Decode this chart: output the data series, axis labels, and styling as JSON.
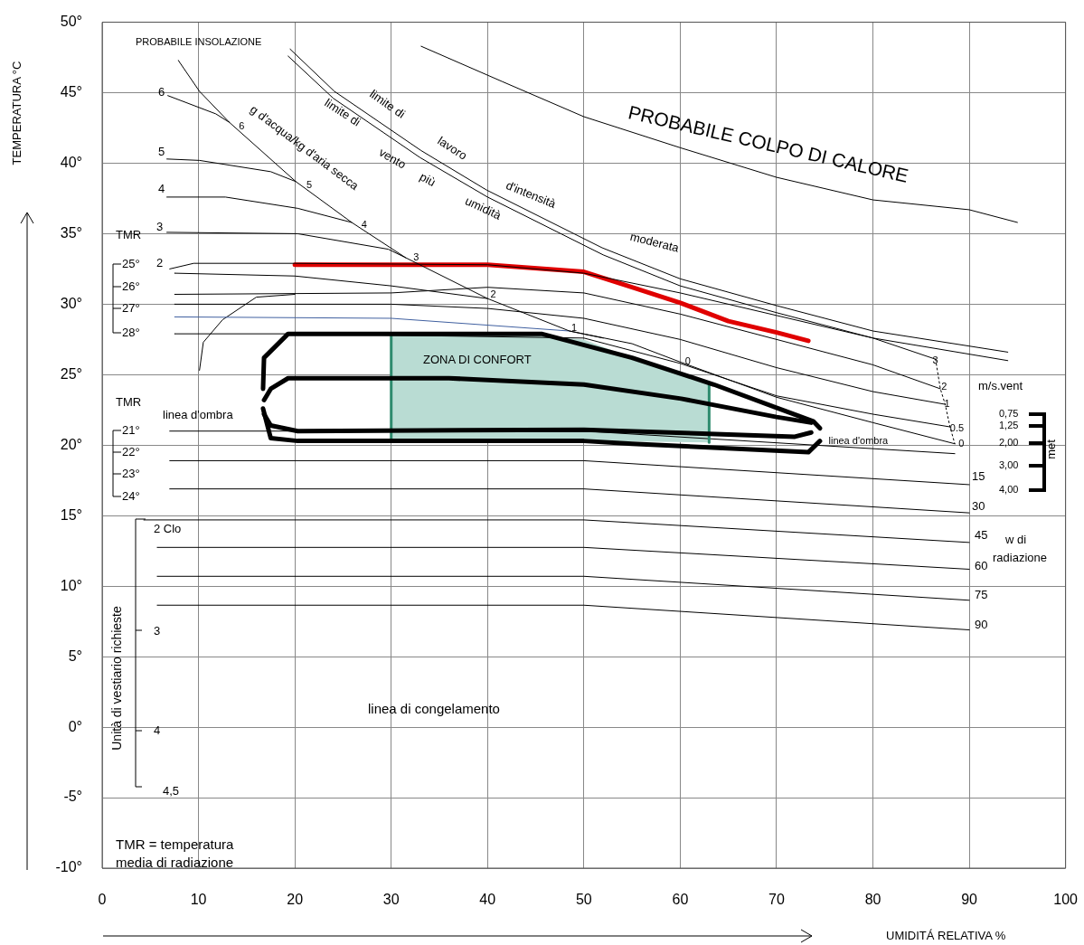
{
  "chart_data": {
    "type": "line",
    "xlabel": "UMIDITÁ RELATIVA %",
    "ylabel": "TEMPERATURA °C",
    "xlim": [
      0,
      100
    ],
    "xticks": [
      0,
      10,
      20,
      30,
      40,
      50,
      60,
      70,
      80,
      90,
      100
    ],
    "ylim": [
      -10,
      50
    ],
    "yticks": [
      {
        "value": -10,
        "label": "-10°"
      },
      {
        "value": -5,
        "label": "-5°"
      },
      {
        "value": 0,
        "label": "0°"
      },
      {
        "value": 5,
        "label": "5°"
      },
      {
        "value": 10,
        "label": "10°"
      },
      {
        "value": 15,
        "label": "15°"
      },
      {
        "value": 20,
        "label": "20°"
      },
      {
        "value": 25,
        "label": "25°"
      },
      {
        "value": 30,
        "label": "30°"
      },
      {
        "value": 35,
        "label": "35°"
      },
      {
        "value": 40,
        "label": "40°"
      },
      {
        "value": 45,
        "label": "45°"
      },
      {
        "value": 50,
        "label": "50°"
      }
    ],
    "grid": true,
    "legend": false,
    "marker": "none",
    "series": [
      {
        "color": "#000000",
        "x": [
          33.1,
          41.5,
          50,
          60,
          70,
          80,
          90,
          95
        ],
        "values": [
          48.3,
          45.8,
          43.3,
          41.1,
          39.0,
          37.4,
          36.7,
          35.8
        ]
      },
      {
        "color": "#000000",
        "x": [
          19.5,
          24.1,
          33.1,
          39.9,
          51.9,
          60,
          70,
          80,
          94
        ],
        "values": [
          48.1,
          45.1,
          40.9,
          38.1,
          34.0,
          31.8,
          29.9,
          28.1,
          26.6
        ]
      },
      {
        "color": "#000000",
        "x": [
          19.3,
          24,
          33,
          40,
          52,
          60,
          70,
          80,
          94
        ],
        "values": [
          47.6,
          44.6,
          40.4,
          37.6,
          33.5,
          31.3,
          29.4,
          27.6,
          26.0
        ]
      },
      {
        "color": "#000000",
        "x": [
          7.9,
          10.1,
          13.2,
          20.1,
          25.9,
          31.5,
          40.0,
          48.5,
          52
        ],
        "values": [
          47.3,
          45.1,
          42.9,
          38.7,
          35.8,
          33.3,
          30.4,
          28.1,
          27.6
        ]
      },
      {
        "color": "#000000",
        "x": [
          6.8,
          11.8,
          13.2
        ],
        "values": [
          44.8,
          43.5,
          42.9
        ]
      },
      {
        "color": "#000000",
        "x": [
          6.7,
          10.1,
          17.5,
          20.1
        ],
        "values": [
          40.3,
          40.2,
          39.4,
          38.7
        ]
      },
      {
        "color": "#000000",
        "x": [
          6.7,
          12.8,
          20.3,
          25.9
        ],
        "values": [
          37.6,
          37.6,
          36.8,
          35.8
        ]
      },
      {
        "color": "#000000",
        "x": [
          6.7,
          20.3,
          29.7,
          31.5
        ],
        "values": [
          35.1,
          35.0,
          33.9,
          33.3
        ]
      },
      {
        "color": "#000000",
        "x": [
          7.5,
          20,
          30,
          40
        ],
        "values": [
          32.2,
          32.0,
          31.3,
          30.4
        ]
      },
      {
        "color": "#4060a0",
        "x": [
          7.5,
          30,
          48.5
        ],
        "values": [
          29.1,
          29.0,
          28.1
        ]
      },
      {
        "color": "#000000",
        "x": [
          7,
          9.5,
          20,
          40,
          50,
          60,
          70,
          80,
          86.5
        ],
        "values": [
          32.5,
          32.9,
          32.9,
          32.8,
          32.2,
          30.8,
          29.2,
          27.6,
          26.1
        ]
      },
      {
        "color": "#000000",
        "x": [
          7.5,
          30,
          40,
          50,
          60,
          70,
          80,
          87
        ],
        "values": [
          30.7,
          30.8,
          31.2,
          30.8,
          29.3,
          27.5,
          25.7,
          24.0
        ]
      },
      {
        "color": "#000000",
        "x": [
          7.5,
          30,
          40,
          50,
          60,
          70,
          80,
          87.5
        ],
        "values": [
          30.0,
          30.0,
          29.7,
          29.0,
          27.5,
          25.5,
          23.8,
          22.9
        ]
      },
      {
        "color": "#000000",
        "x": [
          7.5,
          20,
          50,
          60,
          70,
          80,
          88
        ],
        "values": [
          27.9,
          27.9,
          27.6,
          25.8,
          23.5,
          22.2,
          21.3
        ]
      },
      {
        "color": "#000000",
        "x": [
          48.5,
          55,
          60,
          70,
          80,
          88.5
        ],
        "values": [
          28.1,
          27.2,
          25.9,
          23.4,
          21.6,
          20.1
        ]
      },
      {
        "color": "#000000",
        "x": [
          10.1,
          10.5,
          12.5,
          16,
          20
        ],
        "values": [
          25.3,
          27.3,
          28.9,
          30.5,
          30.7
        ]
      },
      {
        "color": "#000000",
        "line_style": "dotted",
        "x": [
          86.5,
          87,
          87.5,
          88,
          88.5
        ],
        "values": [
          26.1,
          24.0,
          22.9,
          21.3,
          20.1
        ]
      },
      {
        "color": "#e00000",
        "x": [
          20,
          40,
          50,
          55,
          60,
          65,
          70,
          73.3
        ],
        "values": [
          32.8,
          32.8,
          32.3,
          31.2,
          30.1,
          28.8,
          28.0,
          27.4
        ]
      },
      {
        "type": "area",
        "color": "#b9dcd3",
        "x": [
          30,
          35,
          40,
          45,
          50,
          55,
          60,
          63,
          63,
          50,
          30,
          30
        ],
        "values": [
          27.9,
          27.9,
          27.9,
          27.8,
          27.5,
          26.2,
          25.0,
          24.4,
          20.2,
          20.3,
          20.3,
          27.9
        ]
      },
      {
        "color": "#000000",
        "x": [
          16.7,
          16.8,
          19.3,
          45.6,
          55,
          63.5,
          71,
          73.8,
          74.5
        ],
        "values": [
          24.0,
          26.2,
          27.9,
          27.9,
          26.2,
          24.3,
          22.4,
          21.7,
          21.2
        ]
      },
      {
        "color": "#000000",
        "x": [
          16.7,
          17.5,
          20.3,
          50,
          55,
          73.3,
          74.5
        ],
        "values": [
          22.6,
          20.5,
          20.3,
          20.3,
          20.1,
          19.5,
          20.3
        ]
      },
      {
        "color": "#000000",
        "x": [
          16.8,
          17.5,
          19.3,
          36,
          50,
          60.1,
          70,
          73.6
        ],
        "values": [
          23.2,
          24.0,
          24.75,
          24.75,
          24.3,
          23.3,
          22.0,
          21.6
        ]
      },
      {
        "color": "#000000",
        "x": [
          16.8,
          17.5,
          20.3,
          50,
          71.9,
          73.6
        ],
        "values": [
          22.2,
          21.4,
          21.0,
          21.1,
          20.6,
          20.9
        ]
      },
      {
        "color": "#2e8b6e",
        "x": [
          30,
          30
        ],
        "values": [
          20.3,
          27.9
        ]
      },
      {
        "color": "#2e8b6e",
        "x": [
          63,
          63
        ],
        "values": [
          20.2,
          24.4
        ]
      },
      {
        "color": "#000000",
        "x": [
          7,
          50,
          88.5
        ],
        "values": [
          21.0,
          21.0,
          19.4
        ]
      },
      {
        "color": "#000000",
        "x": [
          7,
          50,
          90
        ],
        "values": [
          18.9,
          18.9,
          17.2
        ]
      },
      {
        "color": "#000000",
        "x": [
          7,
          50,
          90
        ],
        "values": [
          16.9,
          16.9,
          15.2
        ]
      },
      {
        "color": "#000000",
        "x": [
          4.3,
          50,
          90
        ],
        "values": [
          14.7,
          14.7,
          13.1
        ]
      },
      {
        "color": "#000000",
        "x": [
          5.7,
          50,
          90
        ],
        "values": [
          12.75,
          12.75,
          11.2
        ]
      },
      {
        "color": "#000000",
        "x": [
          5.7,
          50,
          90
        ],
        "values": [
          10.7,
          10.7,
          9.0
        ]
      },
      {
        "color": "#000000",
        "x": [
          5.7,
          50,
          90
        ],
        "values": [
          8.65,
          8.65,
          6.9
        ]
      }
    ],
    "annotations": [
      "PROBABILE INSOLAZIONE",
      "6",
      "5",
      "4",
      "3",
      "2",
      {
        "text": "6",
        "x": 14.2,
        "y": 42.6
      },
      {
        "text": "5",
        "x": 21.2,
        "y": 38.4
      },
      {
        "text": "4",
        "x": 26.9,
        "y": 35.6
      },
      {
        "text": "3",
        "x": 32.3,
        "y": 33.3
      },
      {
        "text": "2",
        "x": 40.3,
        "y": 30.7
      },
      {
        "text": "1",
        "x": 48.7,
        "y": 28.3
      },
      {
        "text": "0",
        "x": 60.5,
        "y": 25.9
      },
      "TMR",
      "25°",
      "26°",
      "27°",
      "28°",
      "TMR",
      "21°",
      "22°",
      "23°",
      "24°",
      "linea d'ombra",
      {
        "text": "linea d'ombra",
        "x": 75.4,
        "y": 20.3
      },
      "g d'acqua/kg d'aria secca",
      "limite di",
      "lavoro",
      "d'intensità",
      "moderata",
      "limite di",
      "vento",
      "più",
      "umidità",
      "PROBABILE COLPO DI CALORE",
      "ZONA DI CONFORT",
      {
        "text": "3",
        "x": 86.2,
        "y": 26.0
      },
      {
        "text": "2",
        "x": 87.1,
        "y": 24.1
      },
      {
        "text": "1",
        "x": 87.4,
        "y": 22.9
      },
      {
        "text": "0.5",
        "x": 88.0,
        "y": 21.2
      },
      {
        "text": "0",
        "x": 88.9,
        "y": 20.1
      },
      "m/s.vent",
      "0,75",
      "1,25",
      "2,00",
      "3,00",
      "4,00",
      "met",
      "15",
      "30",
      "45",
      "60",
      "75",
      "90",
      "w di",
      "radiazione",
      "2 Clo",
      "3",
      "4",
      "4,5",
      "Unità di vestiario richieste",
      "linea di congelamento",
      "TMR = temperatura media di radiazione"
    ]
  }
}
